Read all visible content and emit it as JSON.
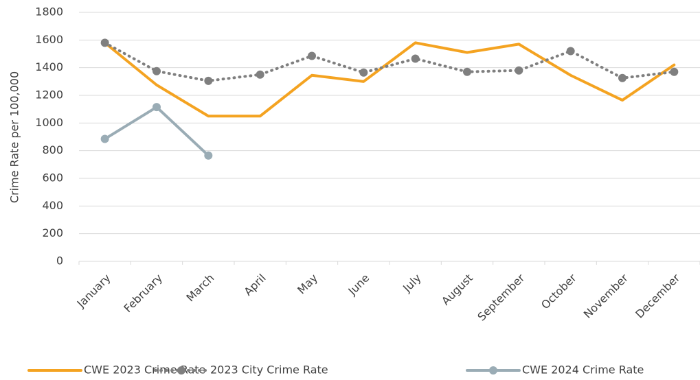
{
  "chart_data": {
    "type": "line",
    "y_label": "Crime Rate per 100,000",
    "categories": [
      "January",
      "February",
      "March",
      "April",
      "May",
      "June",
      "July",
      "August",
      "September",
      "October",
      "November",
      "December"
    ],
    "series": [
      {
        "name": "CWE 2023 Crime Rate",
        "color": "#f4a321",
        "style": "solid",
        "marker": false,
        "values": [
          1580,
          1275,
          1050,
          1050,
          1345,
          1300,
          1580,
          1510,
          1570,
          1345,
          1165,
          1420
        ]
      },
      {
        "name": "2023 City Crime Rate",
        "color": "#7f7f7f",
        "style": "dotted",
        "marker": true,
        "values": [
          1580,
          1375,
          1305,
          1350,
          1485,
          1365,
          1465,
          1370,
          1380,
          1520,
          1325,
          1370
        ]
      },
      {
        "name": "CWE 2024 Crime Rate",
        "color": "#9aacb5",
        "style": "solid",
        "marker": true,
        "values": [
          885,
          1115,
          765,
          null,
          null,
          null,
          null,
          null,
          null,
          null,
          null,
          null
        ]
      }
    ],
    "ylim": [
      0,
      1800
    ],
    "yticks": [
      0,
      200,
      400,
      600,
      800,
      1000,
      1200,
      1400,
      1600,
      1800
    ],
    "grid": true,
    "legend": "bottom"
  }
}
